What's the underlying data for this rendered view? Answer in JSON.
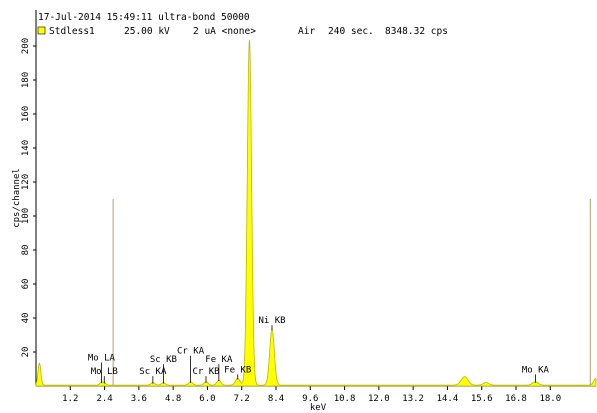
{
  "header": {
    "line1": "17-Jul-2014 15:49:11 ultra-bond 50000",
    "sample": "Stdless1",
    "kv": "25.00 kV",
    "current": "2 uA <none>",
    "atmosphere": "Air",
    "time": "240 sec.",
    "rate": "8348.32 cps"
  },
  "colors": {
    "spectrum_fill": "#ffff00",
    "spectrum_outline": "#b8b800",
    "roi_marker": "#a9a06a",
    "axis": "#000000"
  },
  "chart_data": {
    "type": "area",
    "xlabel": "keV",
    "ylabel": "cps/channel",
    "xlim": [
      0.0,
      19.6
    ],
    "ylim": [
      0,
      210
    ],
    "x_ticks": [
      "1.2",
      "2.4",
      "3.6",
      "4.8",
      "6.0",
      "7.2",
      "8.4",
      "9.6",
      "10.8",
      "12.0",
      "13.2",
      "14.4",
      "15.6",
      "16.8",
      "18.0"
    ],
    "y_ticks": [
      "20",
      "40",
      "60",
      "80",
      "100",
      "120",
      "140",
      "160",
      "180",
      "200"
    ],
    "roi_markers_kev": [
      2.7,
      19.4
    ],
    "roi_marker_height": 110,
    "peaks": [
      {
        "center": 0.12,
        "height": 13,
        "sigma": 0.05
      },
      {
        "center": 2.29,
        "height": 1.5,
        "sigma": 0.06
      },
      {
        "center": 2.39,
        "height": 1.2,
        "sigma": 0.06
      },
      {
        "center": 4.09,
        "height": 1.5,
        "sigma": 0.07
      },
      {
        "center": 4.46,
        "height": 1.5,
        "sigma": 0.07
      },
      {
        "center": 5.41,
        "height": 2,
        "sigma": 0.07
      },
      {
        "center": 5.95,
        "height": 2,
        "sigma": 0.07
      },
      {
        "center": 6.4,
        "height": 3,
        "sigma": 0.07
      },
      {
        "center": 7.06,
        "height": 4,
        "sigma": 0.08
      },
      {
        "center": 7.47,
        "height": 203,
        "sigma": 0.075
      },
      {
        "center": 8.26,
        "height": 33,
        "sigma": 0.08
      },
      {
        "center": 15.0,
        "height": 5,
        "sigma": 0.12
      },
      {
        "center": 15.75,
        "height": 1.5,
        "sigma": 0.1
      },
      {
        "center": 17.48,
        "height": 2,
        "sigma": 0.1
      },
      {
        "center": 19.6,
        "height": 4,
        "sigma": 0.08
      }
    ],
    "baseline": 0.5,
    "annotations": [
      {
        "label": "Mo LA",
        "kev": 2.29,
        "label_y": 15
      },
      {
        "label": "Mo LB",
        "kev": 2.39,
        "label_y": 7
      },
      {
        "label": "Sc KA",
        "kev": 4.09,
        "label_y": 7
      },
      {
        "label": "Sc KB",
        "kev": 4.46,
        "label_y": 14
      },
      {
        "label": "Cr KA",
        "kev": 5.41,
        "label_y": 19
      },
      {
        "label": "Cr KB",
        "kev": 5.95,
        "label_y": 7
      },
      {
        "label": "Fe KA",
        "kev": 6.4,
        "label_y": 14
      },
      {
        "label": "Fe KB",
        "kev": 7.06,
        "label_y": 8
      },
      {
        "label": "Ni KB",
        "kev": 8.26,
        "label_y": 37
      },
      {
        "label": "Mo KA",
        "kev": 17.48,
        "label_y": 8
      }
    ]
  }
}
